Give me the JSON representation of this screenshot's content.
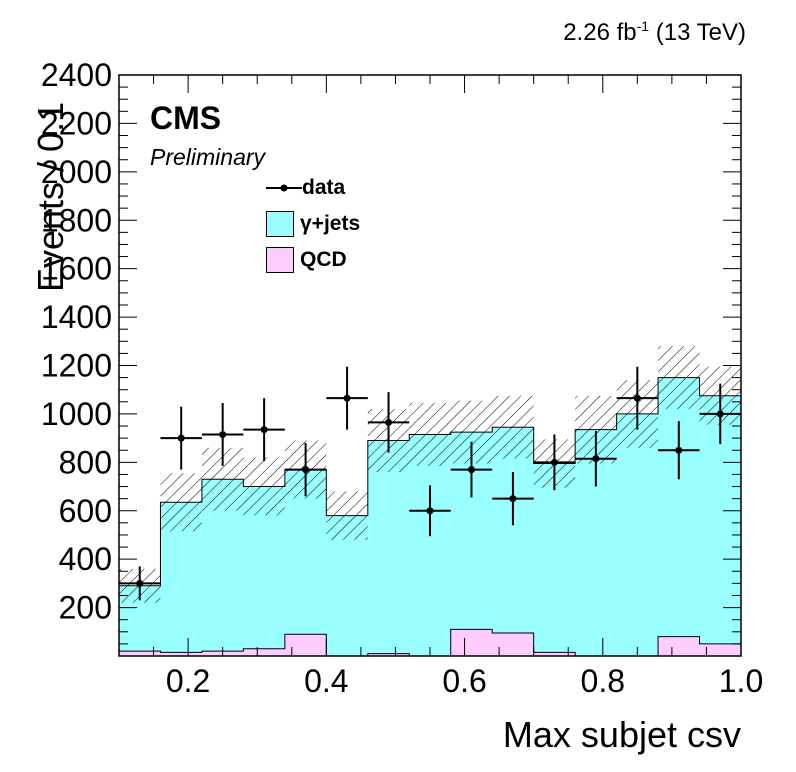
{
  "header": {
    "lumi_value": "2.26 fb",
    "lumi_exp": "-1",
    "lumi_energy": " (13 TeV)",
    "experiment": "CMS",
    "status": "Preliminary"
  },
  "colors": {
    "gjets": "#99ffff",
    "qcd": "#ffccff",
    "data": "#000000"
  },
  "chart_data": {
    "type": "bar",
    "stacked": true,
    "xlabel": "Max subjet csv",
    "ylabel": "Events / 0.1",
    "xlim": [
      0.1,
      1.0
    ],
    "ylim": [
      0,
      2400
    ],
    "xticks": [
      "0.2",
      "0.4",
      "0.6",
      "0.8",
      "1.0"
    ],
    "yticks": [
      "200",
      "400",
      "600",
      "800",
      "1000",
      "1200",
      "1400",
      "1600",
      "1800",
      "2000",
      "2200",
      "2400"
    ],
    "bin_edges": [
      0.1,
      0.16,
      0.22,
      0.28,
      0.34,
      0.4,
      0.46,
      0.52,
      0.58,
      0.64,
      0.7,
      0.76,
      0.82,
      0.88,
      0.94,
      1.0
    ],
    "legend_position": "upper-center",
    "legend": [
      {
        "label": "data",
        "kind": "marker"
      },
      {
        "label": "γ+jets",
        "kind": "box"
      },
      {
        "label": "QCD",
        "kind": "box"
      }
    ],
    "series": [
      {
        "name": "QCD",
        "values": [
          20,
          15,
          20,
          30,
          90,
          0,
          10,
          0,
          110,
          95,
          15,
          0,
          0,
          80,
          50
        ]
      },
      {
        "name": "γ+jets",
        "values": [
          270,
          620,
          710,
          670,
          680,
          580,
          880,
          915,
          815,
          850,
          780,
          935,
          1000,
          1070,
          1025
        ]
      }
    ],
    "mc_total_uncertainty": [
      70,
      120,
      130,
      120,
      120,
      100,
      130,
      130,
      130,
      130,
      100,
      140,
      140,
      130,
      120
    ],
    "data": {
      "x": [
        0.13,
        0.19,
        0.25,
        0.31,
        0.37,
        0.43,
        0.49,
        0.55,
        0.61,
        0.67,
        0.73,
        0.79,
        0.85,
        0.91,
        0.97
      ],
      "y": [
        300,
        900,
        915,
        935,
        770,
        1065,
        965,
        600,
        770,
        650,
        800,
        815,
        1065,
        850,
        1000
      ],
      "yerr": [
        70,
        130,
        130,
        130,
        110,
        130,
        125,
        105,
        115,
        110,
        115,
        115,
        130,
        120,
        125
      ]
    }
  }
}
